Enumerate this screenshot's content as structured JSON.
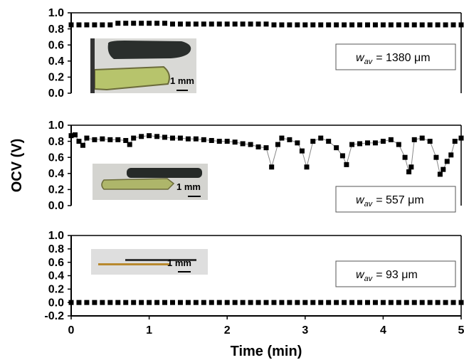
{
  "chart_data": [
    {
      "type": "scatter",
      "color": "#000000",
      "x": [
        0,
        0.1,
        0.2,
        0.3,
        0.4,
        0.5,
        0.6,
        0.7,
        0.8,
        0.9,
        1.0,
        1.1,
        1.2,
        1.3,
        1.4,
        1.5,
        1.6,
        1.7,
        1.8,
        1.9,
        2.0,
        2.1,
        2.2,
        2.3,
        2.4,
        2.5,
        2.6,
        2.7,
        2.8,
        2.9,
        3.0,
        3.1,
        3.2,
        3.3,
        3.4,
        3.5,
        3.6,
        3.7,
        3.8,
        3.9,
        4.0,
        4.1,
        4.2,
        4.3,
        4.4,
        4.5,
        4.6,
        4.7,
        4.8,
        4.9,
        5.0
      ],
      "values": [
        0.85,
        0.85,
        0.85,
        0.85,
        0.85,
        0.85,
        0.87,
        0.87,
        0.87,
        0.87,
        0.87,
        0.87,
        0.87,
        0.86,
        0.86,
        0.86,
        0.86,
        0.86,
        0.86,
        0.86,
        0.86,
        0.86,
        0.86,
        0.86,
        0.86,
        0.86,
        0.85,
        0.85,
        0.85,
        0.85,
        0.85,
        0.85,
        0.85,
        0.85,
        0.85,
        0.85,
        0.85,
        0.85,
        0.85,
        0.85,
        0.85,
        0.85,
        0.85,
        0.85,
        0.85,
        0.85,
        0.85,
        0.85,
        0.85,
        0.85,
        0.85
      ],
      "xlim": [
        0,
        5
      ],
      "ylim": [
        0,
        1
      ],
      "yticks": [
        {
          "value": 0,
          "label": "0.0"
        },
        0.2,
        0.4,
        0.6,
        0.8,
        {
          "value": 1,
          "label": "1.0"
        }
      ],
      "scale_bar": "1 mm",
      "label": {
        "symbol": "w",
        "subscript": "av",
        "text": "= 1380 μm"
      }
    },
    {
      "type": "line",
      "color": "#000000",
      "line_color": "#888888",
      "ylabel": "OCV (V)",
      "x": [
        0,
        0.05,
        0.1,
        0.15,
        0.2,
        0.3,
        0.4,
        0.5,
        0.6,
        0.7,
        0.75,
        0.8,
        0.9,
        1.0,
        1.1,
        1.2,
        1.3,
        1.4,
        1.5,
        1.6,
        1.7,
        1.8,
        1.9,
        2.0,
        2.1,
        2.2,
        2.3,
        2.4,
        2.5,
        2.57,
        2.65,
        2.7,
        2.8,
        2.9,
        2.96,
        3.02,
        3.1,
        3.2,
        3.3,
        3.4,
        3.48,
        3.53,
        3.6,
        3.7,
        3.8,
        3.9,
        4.0,
        4.1,
        4.2,
        4.28,
        4.33,
        4.36,
        4.4,
        4.5,
        4.6,
        4.68,
        4.73,
        4.77,
        4.82,
        4.87,
        4.92,
        5.0
      ],
      "values": [
        0.87,
        0.88,
        0.8,
        0.75,
        0.84,
        0.82,
        0.83,
        0.82,
        0.82,
        0.81,
        0.76,
        0.84,
        0.86,
        0.87,
        0.86,
        0.85,
        0.84,
        0.84,
        0.83,
        0.83,
        0.82,
        0.81,
        0.8,
        0.8,
        0.79,
        0.77,
        0.76,
        0.73,
        0.72,
        0.48,
        0.76,
        0.84,
        0.82,
        0.78,
        0.68,
        0.48,
        0.8,
        0.84,
        0.8,
        0.72,
        0.62,
        0.51,
        0.76,
        0.77,
        0.78,
        0.78,
        0.8,
        0.82,
        0.76,
        0.6,
        0.42,
        0.48,
        0.82,
        0.84,
        0.8,
        0.6,
        0.39,
        0.45,
        0.55,
        0.63,
        0.8,
        0.84
      ],
      "xlim": [
        0,
        5
      ],
      "ylim": [
        0,
        1
      ],
      "yticks": [
        {
          "value": 0,
          "label": "0.0"
        },
        0.2,
        0.4,
        0.6,
        0.8,
        {
          "value": 1,
          "label": "1.0"
        }
      ],
      "scale_bar": "1 mm",
      "label": {
        "symbol": "w",
        "subscript": "av",
        "text": "= 557 μm"
      }
    },
    {
      "type": "scatter",
      "color": "#000000",
      "xlabel": "Time (min)",
      "x": [
        0,
        0.1,
        0.2,
        0.3,
        0.4,
        0.5,
        0.6,
        0.7,
        0.8,
        0.9,
        1.0,
        1.1,
        1.2,
        1.3,
        1.4,
        1.5,
        1.6,
        1.7,
        1.8,
        1.9,
        2.0,
        2.1,
        2.2,
        2.3,
        2.4,
        2.5,
        2.6,
        2.7,
        2.8,
        2.9,
        3.0,
        3.1,
        3.2,
        3.3,
        3.4,
        3.5,
        3.6,
        3.7,
        3.8,
        3.9,
        4.0,
        4.1,
        4.2,
        4.3,
        4.4,
        4.5,
        4.6,
        4.7,
        4.8,
        4.9,
        5.0
      ],
      "values": [
        0,
        0,
        0,
        0,
        0,
        0,
        0,
        0,
        0,
        0,
        0,
        0,
        0,
        0,
        0,
        0,
        0,
        0,
        0,
        0,
        0,
        0,
        0,
        0,
        0,
        0,
        0,
        0,
        0,
        0,
        0,
        0,
        0,
        0,
        0,
        0,
        0,
        0,
        0,
        0,
        0,
        0,
        0,
        0,
        0,
        0,
        0,
        0,
        0,
        0,
        0
      ],
      "xlim": [
        0,
        5
      ],
      "xticks": [
        0,
        1,
        2,
        3,
        4,
        5
      ],
      "ylim": [
        -0.2,
        1
      ],
      "yticks": [
        -0.2,
        {
          "value": 0,
          "label": "0.0"
        },
        0.2,
        0.4,
        0.6,
        0.8,
        {
          "value": 1,
          "label": "1.0"
        }
      ],
      "scale_bar": "1 mm",
      "label": {
        "symbol": "w",
        "subscript": "av",
        "text": "= 93 μm"
      }
    }
  ]
}
